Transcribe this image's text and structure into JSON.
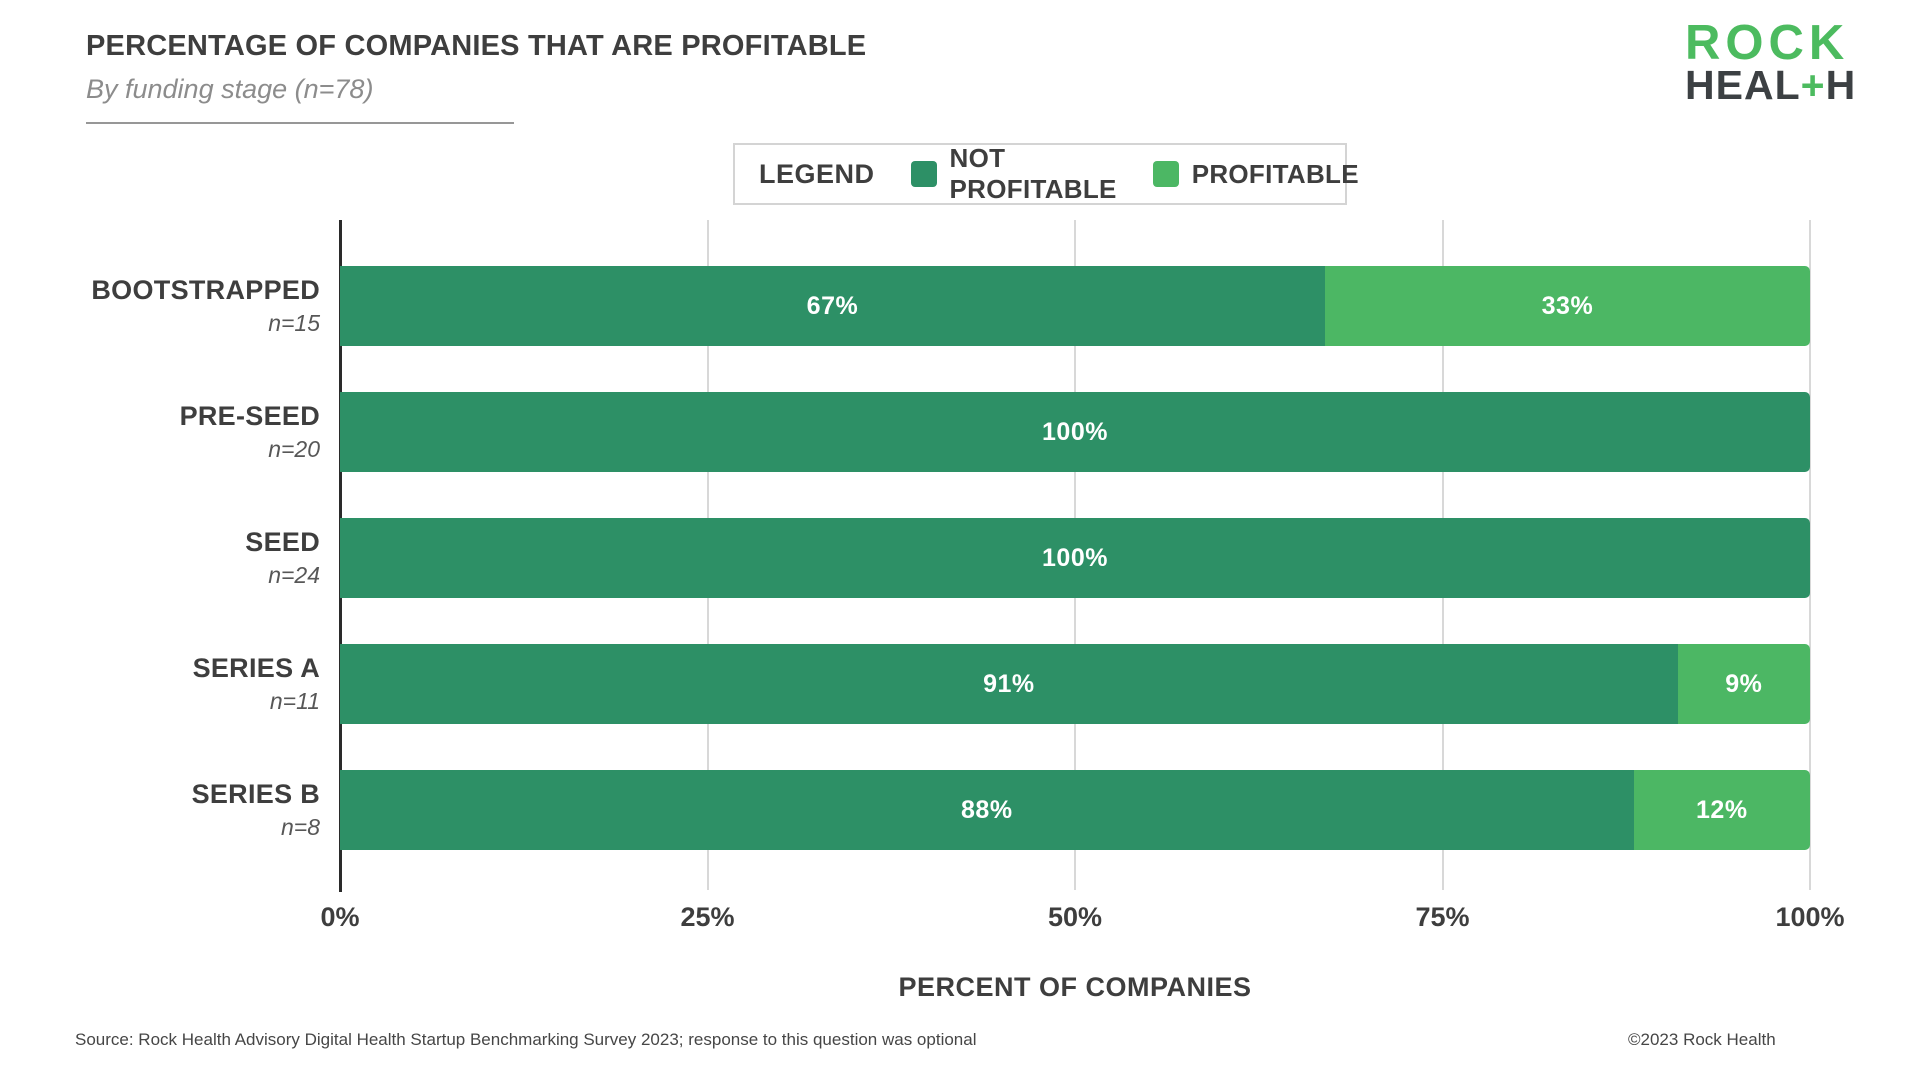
{
  "header": {
    "title": "PERCENTAGE OF COMPANIES THAT ARE PROFITABLE",
    "subtitle": "By funding stage (n=78)"
  },
  "logo": {
    "line1": "ROCK",
    "line2_pre": "HEAL",
    "line2_plus": "+",
    "line2_post": "H"
  },
  "legend": {
    "label": "LEGEND",
    "items": [
      {
        "label": "NOT PROFITABLE",
        "color": "#2D9066"
      },
      {
        "label": "PROFITABLE",
        "color": "#4CB764"
      }
    ]
  },
  "chart_data": {
    "type": "bar",
    "orientation": "horizontal",
    "stacked": true,
    "title": "PERCENTAGE OF COMPANIES THAT ARE PROFITABLE",
    "subtitle": "By funding stage (n=78)",
    "categories": [
      "BOOTSTRAPPED",
      "PRE-SEED",
      "SEED",
      "SERIES A",
      "SERIES B"
    ],
    "category_n": [
      "n=15",
      "n=20",
      "n=24",
      "n=11",
      "n=8"
    ],
    "series": [
      {
        "name": "NOT PROFITABLE",
        "color": "#2D9066",
        "values": [
          67,
          100,
          100,
          91,
          88
        ]
      },
      {
        "name": "PROFITABLE",
        "color": "#4CB764",
        "values": [
          33,
          0,
          0,
          9,
          12
        ]
      }
    ],
    "value_labels": [
      [
        "67%",
        "33%"
      ],
      [
        "100%",
        ""
      ],
      [
        "100%",
        ""
      ],
      [
        "91%",
        "9%"
      ],
      [
        "88%",
        "12%"
      ]
    ],
    "xlabel": "PERCENT OF COMPANIES",
    "x_ticks": [
      "0%",
      "25%",
      "50%",
      "75%",
      "100%"
    ],
    "x_tick_values": [
      0,
      25,
      50,
      75,
      100
    ],
    "xlim": [
      0,
      100
    ],
    "grid": true,
    "gridline_color": "#d8d8d8",
    "legend_position": "top"
  },
  "footer": {
    "source": "Source: Rock Health Advisory Digital Health Startup Benchmarking Survey 2023; response to this question was optional",
    "copyright": "©2023 Rock Health"
  }
}
